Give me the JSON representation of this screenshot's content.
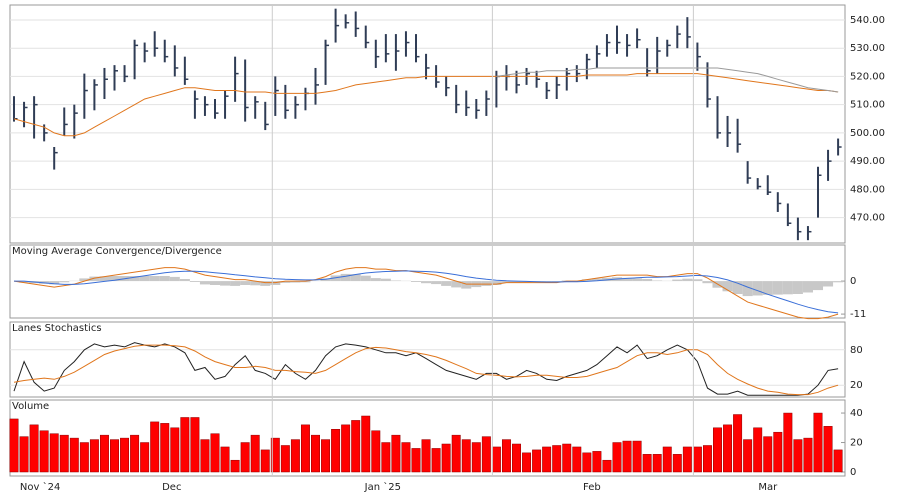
{
  "chart_data": [
    {
      "type": "ohlc",
      "color": "#2f3c55",
      "high": [
        513,
        511,
        513,
        503,
        495,
        509,
        510,
        521,
        519,
        523,
        524,
        524,
        533,
        532,
        536,
        533,
        531,
        527,
        515,
        513,
        512,
        515,
        527,
        526,
        513,
        511,
        520,
        517,
        513,
        516,
        523,
        533,
        544,
        542,
        543,
        538,
        533,
        535,
        535,
        536,
        535,
        528,
        524,
        520,
        517,
        515,
        512,
        515,
        522,
        524,
        522,
        523,
        522,
        518,
        520,
        523,
        524,
        528,
        531,
        535,
        538,
        535,
        537,
        530,
        534,
        533,
        538,
        541,
        532,
        525,
        513,
        506,
        505,
        490,
        484,
        485,
        479,
        475,
        470,
        467,
        488,
        494,
        498
      ],
      "low": [
        504,
        502,
        498,
        497,
        487,
        499,
        498,
        505,
        508,
        512,
        515,
        518,
        519,
        525,
        527,
        525,
        520,
        517,
        505,
        506,
        505,
        505,
        511,
        504,
        505,
        501,
        506,
        505,
        505,
        508,
        510,
        517,
        532,
        537,
        534,
        530,
        523,
        525,
        522,
        527,
        525,
        519,
        516,
        513,
        507,
        506,
        505,
        506,
        509,
        515,
        514,
        517,
        516,
        512,
        512,
        515,
        518,
        519,
        523,
        527,
        528,
        527,
        530,
        520,
        521,
        527,
        530,
        530,
        522,
        509,
        498,
        495,
        493,
        482,
        480,
        478,
        472,
        467,
        462,
        462,
        470,
        483,
        492
      ],
      "close": [
        505,
        509,
        510,
        500,
        493,
        503,
        507,
        515,
        517,
        519,
        522,
        520,
        531,
        529,
        530,
        527,
        523,
        519,
        512,
        510,
        507,
        513,
        521,
        509,
        511,
        503,
        515,
        508,
        510,
        514,
        517,
        531,
        538,
        539,
        537,
        532,
        527,
        528,
        529,
        532,
        527,
        523,
        518,
        516,
        510,
        509,
        508,
        512,
        520,
        520,
        517,
        521,
        519,
        515,
        517,
        521,
        521,
        526,
        528,
        532,
        532,
        531,
        533,
        522,
        529,
        531,
        535,
        534,
        527,
        512,
        500,
        500,
        496,
        484,
        481,
        479,
        475,
        468,
        465,
        465,
        485,
        490,
        495
      ],
      "series": [
        {
          "color": "#e0761c",
          "values": [
            505,
            504,
            503,
            502,
            500,
            499,
            499,
            500,
            502,
            504,
            506,
            508,
            510,
            512,
            513,
            514,
            515,
            516,
            516,
            515.5,
            515,
            515,
            515,
            514.5,
            514.5,
            514.5,
            514,
            514,
            514,
            514,
            514,
            514.5,
            515,
            516,
            517,
            517.5,
            518,
            518.5,
            519,
            519.5,
            519.5,
            520,
            520,
            520,
            520,
            520,
            520,
            520,
            520,
            520,
            520,
            520,
            520,
            520,
            520,
            520,
            520,
            520.5,
            520.5,
            520.5,
            520.5,
            520.5,
            521,
            521,
            521,
            521,
            521,
            521,
            521,
            520.5,
            520,
            519.5,
            519,
            518.5,
            518,
            517.5,
            517,
            516.5,
            516,
            515.5,
            515,
            515,
            514.5
          ]
        },
        {
          "color": "#9a9a9a",
          "values": [
            null,
            null,
            null,
            null,
            null,
            null,
            null,
            null,
            null,
            null,
            null,
            null,
            null,
            null,
            null,
            null,
            null,
            null,
            null,
            null,
            null,
            null,
            null,
            null,
            null,
            null,
            null,
            null,
            null,
            null,
            null,
            null,
            null,
            null,
            null,
            null,
            null,
            null,
            null,
            null,
            null,
            null,
            null,
            null,
            null,
            null,
            null,
            null,
            520,
            520.5,
            521,
            521.5,
            521.5,
            522,
            522,
            522,
            522.5,
            522.5,
            523,
            523,
            523,
            523,
            523,
            523,
            523,
            523,
            523,
            523,
            523,
            523,
            523,
            522.5,
            522,
            521.5,
            521,
            520,
            519,
            518,
            517,
            516,
            515.5,
            515,
            514.5
          ]
        }
      ],
      "ylim": [
        461,
        545.3
      ],
      "yticks": [
        {
          "value": 470,
          "label": "470.00"
        },
        {
          "value": 480,
          "label": "480.00"
        },
        {
          "value": 490,
          "label": "490.00"
        },
        {
          "value": 500,
          "label": "500.00"
        },
        {
          "value": 510,
          "label": "510.00"
        },
        {
          "value": 520,
          "label": "520.00"
        },
        {
          "value": 530,
          "label": "530.00"
        },
        {
          "value": 540,
          "label": "540.00"
        }
      ],
      "grid": true
    },
    {
      "type": "line",
      "title": "Moving Average Convergence/Divergence",
      "histogram": {
        "color": "#c8c8c8",
        "values": [
          0,
          -0.5,
          -0.7,
          -0.9,
          -1.1,
          -0.4,
          0.1,
          0.9,
          1.5,
          1.6,
          1.7,
          1.7,
          1.7,
          1.7,
          1.7,
          1.7,
          1.4,
          0.7,
          -0.3,
          -1.1,
          -1.3,
          -1.5,
          -1.6,
          -1.3,
          -1.4,
          -1.6,
          -1.3,
          -0.6,
          -0.5,
          -0.4,
          0.1,
          0.9,
          1.9,
          2.4,
          2.3,
          1.8,
          1,
          0.8,
          0.2,
          0.1,
          -0.3,
          -0.7,
          -1,
          -1.6,
          -2.1,
          -2.5,
          -2,
          -1.6,
          -1.3,
          -0.6,
          -0.5,
          -0.4,
          -0.3,
          -0.2,
          -0.2,
          0.2,
          0.2,
          0.6,
          0.9,
          1.1,
          1.3,
          1.1,
          0.9,
          0.7,
          0.2,
          0.1,
          0.5,
          0.8,
          0.6,
          -0.7,
          -2.2,
          -3.4,
          -4.3,
          -5,
          -4.8,
          -4.6,
          -4.5,
          -4.4,
          -4.3,
          -3.8,
          -3,
          -1.8,
          -0.4
        ]
      },
      "series": [
        {
          "color": "#e0761c",
          "values": [
            0,
            -0.5,
            -1,
            -1.5,
            -2,
            -1.5,
            -1,
            0,
            1,
            1.5,
            2,
            2.5,
            3,
            3.5,
            4,
            4.5,
            4.5,
            4,
            3,
            2,
            1.5,
            1,
            0.5,
            0.5,
            0,
            -0.5,
            -0.5,
            0,
            0,
            0,
            0.5,
            1.5,
            3,
            4,
            4.5,
            4.5,
            4,
            4,
            3.5,
            3.5,
            3,
            2.5,
            2,
            1,
            0,
            -1,
            -1,
            -1,
            -1,
            -0.5,
            -0.5,
            -0.5,
            -0.5,
            -0.5,
            -0.5,
            0,
            0,
            0.5,
            1,
            1.5,
            2,
            2,
            2,
            2,
            1.5,
            1.5,
            2,
            2.5,
            2.5,
            1,
            -1,
            -3,
            -5,
            -7,
            -8,
            -9,
            -10,
            -11,
            -12,
            -12.5,
            -12.5,
            -12,
            -11
          ]
        },
        {
          "color": "#3a6fd8",
          "values": [
            0,
            0,
            -0.3,
            -0.6,
            -0.9,
            -1.1,
            -1.1,
            -0.9,
            -0.5,
            -0.1,
            0.3,
            0.8,
            1.3,
            1.8,
            2.3,
            2.8,
            3.1,
            3.3,
            3.3,
            3.1,
            2.8,
            2.5,
            2.1,
            1.8,
            1.4,
            1.1,
            0.8,
            0.6,
            0.5,
            0.4,
            0.4,
            0.6,
            1.1,
            1.6,
            2.2,
            2.7,
            3,
            3.2,
            3.3,
            3.4,
            3.3,
            3.2,
            3,
            2.6,
            2.1,
            1.5,
            1,
            0.6,
            0.3,
            0.1,
            0,
            -0.1,
            -0.2,
            -0.3,
            -0.3,
            -0.2,
            -0.2,
            -0.1,
            0.1,
            0.4,
            0.7,
            0.9,
            1.1,
            1.3,
            1.3,
            1.4,
            1.5,
            1.7,
            1.9,
            1.7,
            1.2,
            0.4,
            -0.7,
            -2,
            -3.2,
            -4.4,
            -5.5,
            -6.6,
            -7.7,
            -8.7,
            -9.5,
            -10.2,
            -10.6
          ]
        }
      ],
      "ylim": [
        -12.3,
        7.7
      ],
      "yticks": [
        -11,
        0
      ]
    },
    {
      "type": "line",
      "title": "Lanes Stochastics",
      "series": [
        {
          "color": "#222222",
          "values": [
            10,
            60,
            25,
            10,
            15,
            45,
            60,
            80,
            90,
            85,
            88,
            85,
            92,
            88,
            85,
            90,
            85,
            75,
            45,
            50,
            30,
            35,
            55,
            70,
            45,
            40,
            30,
            55,
            40,
            30,
            45,
            70,
            85,
            90,
            88,
            85,
            80,
            75,
            75,
            70,
            75,
            65,
            55,
            45,
            40,
            35,
            30,
            40,
            40,
            30,
            35,
            45,
            40,
            30,
            28,
            35,
            40,
            45,
            55,
            70,
            85,
            75,
            88,
            65,
            70,
            80,
            88,
            80,
            60,
            15,
            5,
            5,
            10,
            3,
            3,
            3,
            3,
            3,
            3,
            5,
            20,
            45,
            48
          ]
        },
        {
          "color": "#e0761c",
          "values": [
            25,
            28,
            30,
            32,
            30,
            35,
            42,
            52,
            62,
            72,
            78,
            82,
            86,
            88,
            88,
            88,
            87,
            85,
            78,
            68,
            60,
            55,
            50,
            50,
            52,
            50,
            45,
            45,
            43,
            42,
            40,
            45,
            55,
            65,
            75,
            82,
            84,
            83,
            80,
            77,
            75,
            72,
            68,
            62,
            55,
            48,
            40,
            38,
            37,
            35,
            34,
            35,
            37,
            37,
            35,
            33,
            33,
            35,
            40,
            45,
            50,
            60,
            70,
            75,
            75,
            72,
            75,
            80,
            80,
            72,
            55,
            40,
            30,
            22,
            15,
            10,
            8,
            5,
            4,
            4,
            8,
            15,
            20
          ]
        }
      ],
      "ylim": [
        0,
        100
      ],
      "yticks": [
        20,
        80
      ],
      "grid": true
    },
    {
      "type": "bar",
      "title": "Volume",
      "color": "#ff0000",
      "values": [
        36,
        24,
        32,
        28,
        26,
        25,
        23,
        20,
        22,
        25,
        22,
        23,
        25,
        20,
        34,
        33,
        30,
        37,
        37,
        22,
        26,
        17,
        8,
        20,
        25,
        15,
        23,
        18,
        22,
        32,
        25,
        22,
        29,
        32,
        35,
        38,
        28,
        20,
        25,
        20,
        16,
        22,
        16,
        19,
        25,
        22,
        20,
        24,
        17,
        22,
        19,
        13,
        15,
        17,
        18,
        19,
        17,
        13,
        14,
        8,
        20,
        21,
        21,
        12,
        12,
        17,
        12,
        17,
        17,
        18,
        30,
        32,
        39,
        22,
        30,
        24,
        27,
        40,
        22,
        23,
        40,
        31,
        15
      ],
      "ylim": [
        0,
        47.5
      ],
      "yticks": [
        0,
        20,
        40
      ],
      "xticks": [
        {
          "value": 2.6,
          "label": "Nov `24"
        },
        {
          "value": 15.7,
          "label": "Dec"
        },
        {
          "value": 36.7,
          "label": "Jan `25"
        },
        {
          "value": 57.5,
          "label": "Feb"
        },
        {
          "value": 75,
          "label": "Mar"
        }
      ],
      "xgrid": [
        25.7,
        47.6,
        67.6
      ]
    }
  ]
}
